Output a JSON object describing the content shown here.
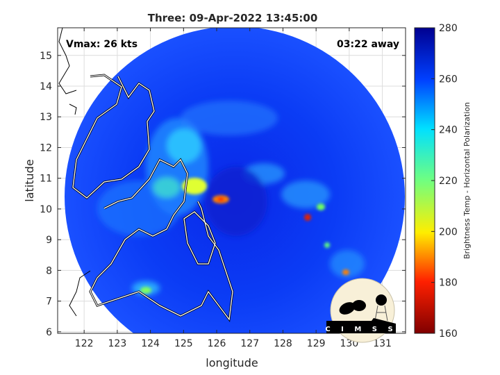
{
  "chart_data": {
    "type": "heatmap",
    "title": "Three: 09-Apr-2022 13:45:00",
    "xlabel": "longitude",
    "ylabel": "latitude",
    "xlim": [
      121.2,
      131.7
    ],
    "ylim": [
      5.95,
      15.9
    ],
    "xticks": [
      122,
      123,
      124,
      125,
      126,
      127,
      128,
      129,
      130,
      131
    ],
    "yticks": [
      6,
      7,
      8,
      9,
      10,
      11,
      12,
      13,
      14,
      15
    ],
    "grid": true,
    "colorbar": {
      "label": "Brightness Temp - Horizontal Polarization",
      "range": [
        160,
        280
      ],
      "ticks": [
        160,
        180,
        200,
        220,
        240,
        260,
        280
      ],
      "colormap": "jet",
      "colors": [
        "#800000",
        "#ff2000",
        "#ffee00",
        "#70ff80",
        "#00e0ff",
        "#0040ff",
        "#000090"
      ]
    },
    "annotations": {
      "vmax": "Vmax: 26 kts",
      "time_away": "03:22 away"
    },
    "swath_center": {
      "lon": 126.8,
      "lat": 10.9
    },
    "features": [
      {
        "name": "cold core",
        "lon": 126.3,
        "lat": 10.4,
        "value": 195
      },
      {
        "name": "convection",
        "lon": 125.7,
        "lat": 10.8,
        "value": 205
      },
      {
        "name": "convection",
        "lon": 128.8,
        "lat": 9.7,
        "value": 185
      },
      {
        "name": "convection",
        "lon": 130.4,
        "lat": 7.9,
        "value": 195
      }
    ]
  },
  "logo": {
    "text": "CIMSS"
  }
}
